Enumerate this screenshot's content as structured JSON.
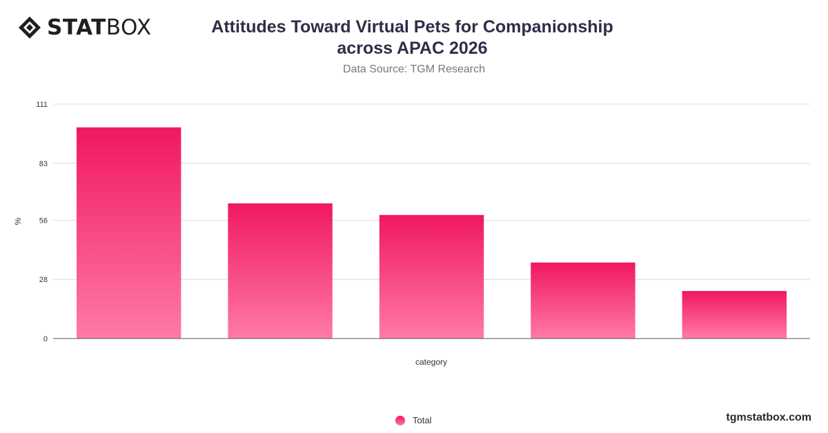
{
  "brand": {
    "logo_bold": "STAT",
    "logo_light": "BOX",
    "website": "tgmstatbox.com"
  },
  "header": {
    "title_line1": "Attitudes Toward Virtual Pets for Companionship",
    "title_line2": "across APAC 2026",
    "source": "Data Source: TGM Research"
  },
  "legend": {
    "label": "Total"
  },
  "colors": {
    "bar_top": "#f0185f",
    "bar_bottom": "#ff7aa9",
    "grid": "#dcdcdc",
    "axis": "#555555",
    "title": "#2e2e48"
  },
  "chart_data": {
    "type": "bar",
    "categories": [
      "",
      "",
      "",
      "",
      ""
    ],
    "series": [
      {
        "name": "Total",
        "values": [
          100,
          64,
          58.5,
          36,
          22.5
        ]
      }
    ],
    "xlabel": "category",
    "ylabel": "%",
    "ylim": [
      0,
      111
    ],
    "yticks": [
      0,
      28,
      56,
      83,
      111
    ],
    "grid": true,
    "legend_position": "bottom-center"
  }
}
